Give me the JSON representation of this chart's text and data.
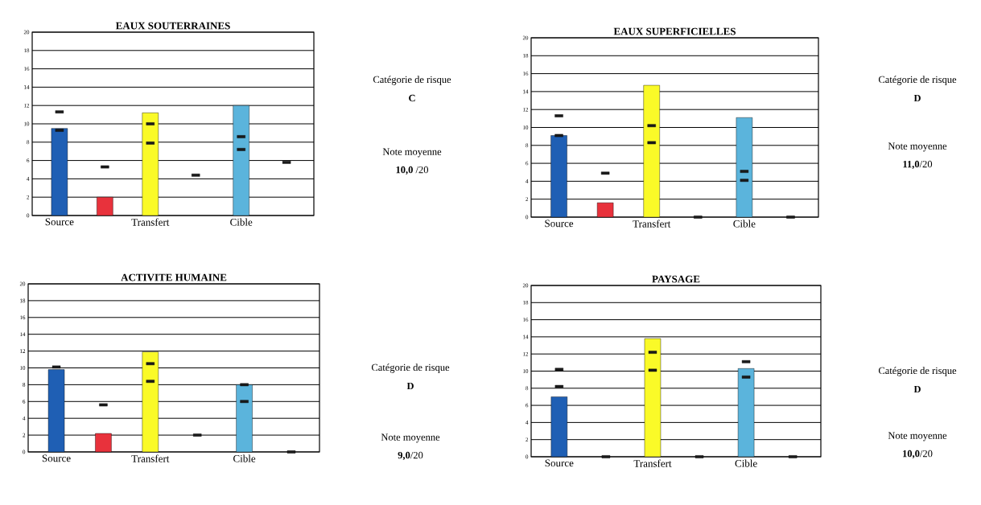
{
  "chart_data": [
    {
      "type": "bar",
      "title": "EAUX SOUTERRAINES",
      "categories": [
        "Source",
        null,
        "Transfert",
        null,
        "Cible",
        null
      ],
      "series": [
        {
          "type": "bar",
          "colors": [
            "#1f5fb4",
            "#e8323c",
            "#fafa28",
            "#e8323c",
            "#5bb4dc",
            "#e8323c"
          ],
          "values": [
            9.5,
            2.0,
            11.2,
            null,
            12.0,
            null
          ]
        },
        {
          "type": "scatter",
          "color": "#1a1a1a",
          "values": [
            11.3,
            5.3,
            10.0,
            4.4,
            8.6,
            5.8
          ]
        },
        {
          "type": "scatter",
          "color": "#1a1a1a",
          "values": [
            9.3,
            null,
            7.9,
            null,
            7.2,
            null
          ]
        }
      ],
      "ylim": [
        0,
        20
      ],
      "yticks": [
        0,
        2,
        4,
        6,
        8,
        10,
        12,
        14,
        16,
        18,
        20
      ],
      "grid": "y",
      "annotations": [
        "Catégorie de risque",
        "C",
        "Note moyenne",
        "**10,0** /20"
      ]
    },
    {
      "type": "bar",
      "title": "EAUX SUPERFICIELLES",
      "categories": [
        "Source",
        null,
        "Transfert",
        null,
        "Cible",
        null
      ],
      "series": [
        {
          "type": "bar",
          "colors": [
            "#1f5fb4",
            "#e8323c",
            "#fafa28",
            "#e8323c",
            "#5bb4dc",
            "#e8323c"
          ],
          "values": [
            9.1,
            1.6,
            14.7,
            null,
            11.1,
            null
          ]
        },
        {
          "type": "scatter",
          "color": "#1a1a1a",
          "values": [
            11.3,
            4.9,
            10.2,
            0,
            5.1,
            0
          ]
        },
        {
          "type": "scatter",
          "color": "#1a1a1a",
          "values": [
            9.1,
            null,
            8.3,
            null,
            4.1,
            null
          ]
        }
      ],
      "ylim": [
        0,
        20
      ],
      "yticks": [
        0,
        2,
        4,
        6,
        8,
        10,
        12,
        14,
        16,
        18,
        20
      ],
      "grid": "y",
      "annotations": [
        "Catégorie de risque",
        "D",
        "Note moyenne",
        "**11,0**/20"
      ]
    },
    {
      "type": "bar",
      "title": "ACTIVITE HUMAINE",
      "categories": [
        "Source",
        null,
        "Transfert",
        null,
        "Cible",
        null
      ],
      "series": [
        {
          "type": "bar",
          "colors": [
            "#1f5fb4",
            "#e8323c",
            "#fafa28",
            "#e8323c",
            "#5bb4dc",
            "#e8323c"
          ],
          "values": [
            9.8,
            2.2,
            11.9,
            null,
            8.0,
            null
          ]
        },
        {
          "type": "scatter",
          "color": "#1a1a1a",
          "values": [
            10.1,
            5.6,
            10.5,
            2.0,
            8.0,
            0
          ]
        },
        {
          "type": "scatter",
          "color": "#1a1a1a",
          "values": [
            null,
            null,
            8.4,
            null,
            6.0,
            null
          ]
        }
      ],
      "ylim": [
        0,
        20
      ],
      "yticks": [
        0,
        2,
        4,
        6,
        8,
        10,
        12,
        14,
        16,
        18,
        20
      ],
      "grid": "y",
      "annotations": [
        "Catégorie de risque",
        "D",
        "Note moyenne",
        "**9,0**/20"
      ]
    },
    {
      "type": "bar",
      "title": "PAYSAGE",
      "categories": [
        "Source",
        null,
        "Transfert",
        null,
        "Cible",
        null
      ],
      "series": [
        {
          "type": "bar",
          "colors": [
            "#1f5fb4",
            "#e8323c",
            "#fafa28",
            "#e8323c",
            "#5bb4dc",
            "#e8323c"
          ],
          "values": [
            7.0,
            null,
            13.8,
            null,
            10.3,
            null
          ]
        },
        {
          "type": "scatter",
          "color": "#1a1a1a",
          "values": [
            10.2,
            0,
            12.2,
            0,
            11.1,
            0
          ]
        },
        {
          "type": "scatter",
          "color": "#1a1a1a",
          "values": [
            8.2,
            null,
            10.1,
            null,
            9.3,
            null
          ]
        }
      ],
      "ylim": [
        0,
        20
      ],
      "yticks": [
        0,
        2,
        4,
        6,
        8,
        10,
        12,
        14,
        16,
        18,
        20
      ],
      "grid": "y",
      "annotations": [
        "Catégorie de risque",
        "D",
        "Note moyenne",
        "**10,0**/20"
      ]
    }
  ]
}
